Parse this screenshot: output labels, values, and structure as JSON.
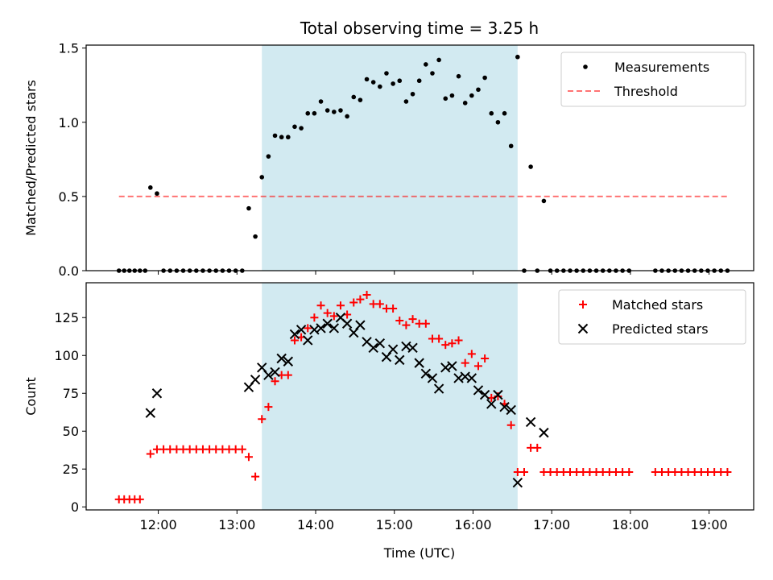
{
  "chart_data": {
    "title": "Total observing time = 3.25 h",
    "shaded_interval": [
      "13:19",
      "16:34"
    ],
    "x_axis": {
      "label": "Time (UTC)",
      "range": [
        "11:05",
        "19:34"
      ],
      "ticks": [
        "12:00",
        "13:00",
        "14:00",
        "15:00",
        "16:00",
        "17:00",
        "18:00",
        "19:00"
      ]
    },
    "shade_color": "#add8e6",
    "panels": [
      {
        "type": "scatter",
        "ylabel": "Matched/Predicted stars",
        "ylim": [
          0,
          1.52
        ],
        "yticks": [
          "0.0",
          "0.5",
          "1.0",
          "1.5"
        ],
        "legend": {
          "placement": "top-right",
          "entries": [
            "Measurements",
            "Threshold"
          ]
        },
        "threshold": {
          "name": "Threshold",
          "value": 0.5,
          "x_range": [
            "11:30",
            "19:15"
          ],
          "color": "#ff0000"
        },
        "series": [
          {
            "name": "Measurements",
            "marker": "dot",
            "color": "#000000",
            "points": [
              [
                "11:30",
                0
              ],
              [
                "11:34",
                0
              ],
              [
                "11:38",
                0
              ],
              [
                "11:42",
                0
              ],
              [
                "11:46",
                0
              ],
              [
                "11:50",
                0
              ],
              [
                "11:54",
                0.56
              ],
              [
                "11:59",
                0.52
              ],
              [
                "12:04",
                0
              ],
              [
                "12:09",
                0
              ],
              [
                "12:14",
                0
              ],
              [
                "12:19",
                0
              ],
              [
                "12:24",
                0
              ],
              [
                "12:29",
                0
              ],
              [
                "12:34",
                0
              ],
              [
                "12:39",
                0
              ],
              [
                "12:44",
                0
              ],
              [
                "12:49",
                0
              ],
              [
                "12:54",
                0
              ],
              [
                "12:59",
                0
              ],
              [
                "13:04",
                0
              ],
              [
                "13:09",
                0.42
              ],
              [
                "13:14",
                0.23
              ],
              [
                "13:19",
                0.63
              ],
              [
                "13:24",
                0.77
              ],
              [
                "13:29",
                0.91
              ],
              [
                "13:34",
                0.9
              ],
              [
                "13:39",
                0.9
              ],
              [
                "13:44",
                0.97
              ],
              [
                "13:49",
                0.96
              ],
              [
                "13:54",
                1.06
              ],
              [
                "13:59",
                1.06
              ],
              [
                "14:04",
                1.14
              ],
              [
                "14:09",
                1.08
              ],
              [
                "14:14",
                1.07
              ],
              [
                "14:19",
                1.08
              ],
              [
                "14:24",
                1.04
              ],
              [
                "14:29",
                1.17
              ],
              [
                "14:34",
                1.15
              ],
              [
                "14:39",
                1.29
              ],
              [
                "14:44",
                1.27
              ],
              [
                "14:49",
                1.24
              ],
              [
                "14:54",
                1.33
              ],
              [
                "14:59",
                1.26
              ],
              [
                "15:04",
                1.28
              ],
              [
                "15:09",
                1.14
              ],
              [
                "15:14",
                1.19
              ],
              [
                "15:19",
                1.28
              ],
              [
                "15:24",
                1.39
              ],
              [
                "15:29",
                1.33
              ],
              [
                "15:34",
                1.42
              ],
              [
                "15:39",
                1.16
              ],
              [
                "15:44",
                1.18
              ],
              [
                "15:49",
                1.31
              ],
              [
                "15:54",
                1.13
              ],
              [
                "15:59",
                1.18
              ],
              [
                "16:04",
                1.22
              ],
              [
                "16:09",
                1.3
              ],
              [
                "16:14",
                1.06
              ],
              [
                "16:19",
                1.0
              ],
              [
                "16:24",
                1.06
              ],
              [
                "16:29",
                0.84
              ],
              [
                "16:34",
                1.44
              ],
              [
                "16:39",
                0
              ],
              [
                "16:44",
                0.7
              ],
              [
                "16:49",
                0
              ],
              [
                "16:54",
                0.47
              ],
              [
                "16:59",
                0
              ],
              [
                "17:04",
                0
              ],
              [
                "17:09",
                0
              ],
              [
                "17:14",
                0
              ],
              [
                "17:19",
                0
              ],
              [
                "17:24",
                0
              ],
              [
                "17:29",
                0
              ],
              [
                "17:34",
                0
              ],
              [
                "17:39",
                0
              ],
              [
                "17:44",
                0
              ],
              [
                "17:49",
                0
              ],
              [
                "17:54",
                0
              ],
              [
                "17:59",
                0
              ],
              [
                "18:19",
                0
              ],
              [
                "18:24",
                0
              ],
              [
                "18:29",
                0
              ],
              [
                "18:34",
                0
              ],
              [
                "18:39",
                0
              ],
              [
                "18:44",
                0
              ],
              [
                "18:49",
                0
              ],
              [
                "18:54",
                0
              ],
              [
                "18:59",
                0
              ],
              [
                "19:04",
                0
              ],
              [
                "19:09",
                0
              ],
              [
                "19:14",
                0
              ]
            ]
          }
        ]
      },
      {
        "type": "scatter",
        "ylabel": "Count",
        "ylim": [
          -2,
          148
        ],
        "yticks": [
          "0",
          "25",
          "50",
          "75",
          "100",
          "125"
        ],
        "legend": {
          "placement": "top-right",
          "entries": [
            "Matched stars",
            "Predicted stars"
          ]
        },
        "series": [
          {
            "name": "Matched stars",
            "marker": "plus",
            "color": "#ff0000",
            "points": [
              [
                "11:30",
                5
              ],
              [
                "11:34",
                5
              ],
              [
                "11:38",
                5
              ],
              [
                "11:42",
                5
              ],
              [
                "11:46",
                5
              ],
              [
                "11:54",
                35
              ],
              [
                "11:59",
                38
              ],
              [
                "12:04",
                38
              ],
              [
                "12:09",
                38
              ],
              [
                "12:14",
                38
              ],
              [
                "12:19",
                38
              ],
              [
                "12:24",
                38
              ],
              [
                "12:29",
                38
              ],
              [
                "12:34",
                38
              ],
              [
                "12:39",
                38
              ],
              [
                "12:44",
                38
              ],
              [
                "12:49",
                38
              ],
              [
                "12:54",
                38
              ],
              [
                "12:59",
                38
              ],
              [
                "13:04",
                38
              ],
              [
                "13:09",
                33
              ],
              [
                "13:14",
                20
              ],
              [
                "13:19",
                58
              ],
              [
                "13:24",
                66
              ],
              [
                "13:29",
                83
              ],
              [
                "13:34",
                87
              ],
              [
                "13:39",
                87
              ],
              [
                "13:44",
                110
              ],
              [
                "13:49",
                112
              ],
              [
                "13:54",
                118
              ],
              [
                "13:59",
                125
              ],
              [
                "14:04",
                133
              ],
              [
                "14:09",
                128
              ],
              [
                "14:14",
                126
              ],
              [
                "14:19",
                133
              ],
              [
                "14:24",
                127
              ],
              [
                "14:29",
                135
              ],
              [
                "14:34",
                137
              ],
              [
                "14:39",
                140
              ],
              [
                "14:44",
                134
              ],
              [
                "14:49",
                134
              ],
              [
                "14:54",
                131
              ],
              [
                "14:59",
                131
              ],
              [
                "15:04",
                123
              ],
              [
                "15:09",
                120
              ],
              [
                "15:14",
                124
              ],
              [
                "15:19",
                121
              ],
              [
                "15:24",
                121
              ],
              [
                "15:29",
                111
              ],
              [
                "15:34",
                111
              ],
              [
                "15:39",
                107
              ],
              [
                "15:44",
                108
              ],
              [
                "15:49",
                110
              ],
              [
                "15:54",
                95
              ],
              [
                "15:59",
                101
              ],
              [
                "16:04",
                93
              ],
              [
                "16:09",
                98
              ],
              [
                "16:14",
                72
              ],
              [
                "16:19",
                73
              ],
              [
                "16:24",
                68
              ],
              [
                "16:29",
                54
              ],
              [
                "16:34",
                23
              ],
              [
                "16:39",
                23
              ],
              [
                "16:44",
                39
              ],
              [
                "16:49",
                39
              ],
              [
                "16:54",
                23
              ],
              [
                "16:59",
                23
              ],
              [
                "17:04",
                23
              ],
              [
                "17:09",
                23
              ],
              [
                "17:14",
                23
              ],
              [
                "17:19",
                23
              ],
              [
                "17:24",
                23
              ],
              [
                "17:29",
                23
              ],
              [
                "17:34",
                23
              ],
              [
                "17:39",
                23
              ],
              [
                "17:44",
                23
              ],
              [
                "17:49",
                23
              ],
              [
                "17:54",
                23
              ],
              [
                "17:59",
                23
              ],
              [
                "18:19",
                23
              ],
              [
                "18:24",
                23
              ],
              [
                "18:29",
                23
              ],
              [
                "18:34",
                23
              ],
              [
                "18:39",
                23
              ],
              [
                "18:44",
                23
              ],
              [
                "18:49",
                23
              ],
              [
                "18:54",
                23
              ],
              [
                "18:59",
                23
              ],
              [
                "19:04",
                23
              ],
              [
                "19:09",
                23
              ],
              [
                "19:14",
                23
              ]
            ]
          },
          {
            "name": "Predicted stars",
            "marker": "x",
            "color": "#000000",
            "points": [
              [
                "11:54",
                62
              ],
              [
                "11:59",
                75
              ],
              [
                "13:09",
                79
              ],
              [
                "13:14",
                84
              ],
              [
                "13:19",
                92
              ],
              [
                "13:24",
                87
              ],
              [
                "13:29",
                89
              ],
              [
                "13:34",
                98
              ],
              [
                "13:39",
                96
              ],
              [
                "13:44",
                114
              ],
              [
                "13:49",
                117
              ],
              [
                "13:54",
                110
              ],
              [
                "13:59",
                117
              ],
              [
                "14:04",
                118
              ],
              [
                "14:09",
                121
              ],
              [
                "14:14",
                118
              ],
              [
                "14:19",
                125
              ],
              [
                "14:24",
                121
              ],
              [
                "14:29",
                115
              ],
              [
                "14:34",
                120
              ],
              [
                "14:39",
                109
              ],
              [
                "14:44",
                105
              ],
              [
                "14:49",
                108
              ],
              [
                "14:54",
                99
              ],
              [
                "14:59",
                104
              ],
              [
                "15:04",
                97
              ],
              [
                "15:09",
                106
              ],
              [
                "15:14",
                105
              ],
              [
                "15:19",
                95
              ],
              [
                "15:24",
                88
              ],
              [
                "15:29",
                85
              ],
              [
                "15:34",
                78
              ],
              [
                "15:39",
                92
              ],
              [
                "15:44",
                93
              ],
              [
                "15:49",
                85
              ],
              [
                "15:54",
                86
              ],
              [
                "15:59",
                85
              ],
              [
                "16:04",
                77
              ],
              [
                "16:09",
                74
              ],
              [
                "16:14",
                68
              ],
              [
                "16:19",
                74
              ],
              [
                "16:24",
                66
              ],
              [
                "16:29",
                64
              ],
              [
                "16:34",
                16
              ],
              [
                "16:44",
                56
              ],
              [
                "16:54",
                49
              ]
            ]
          }
        ]
      }
    ]
  }
}
